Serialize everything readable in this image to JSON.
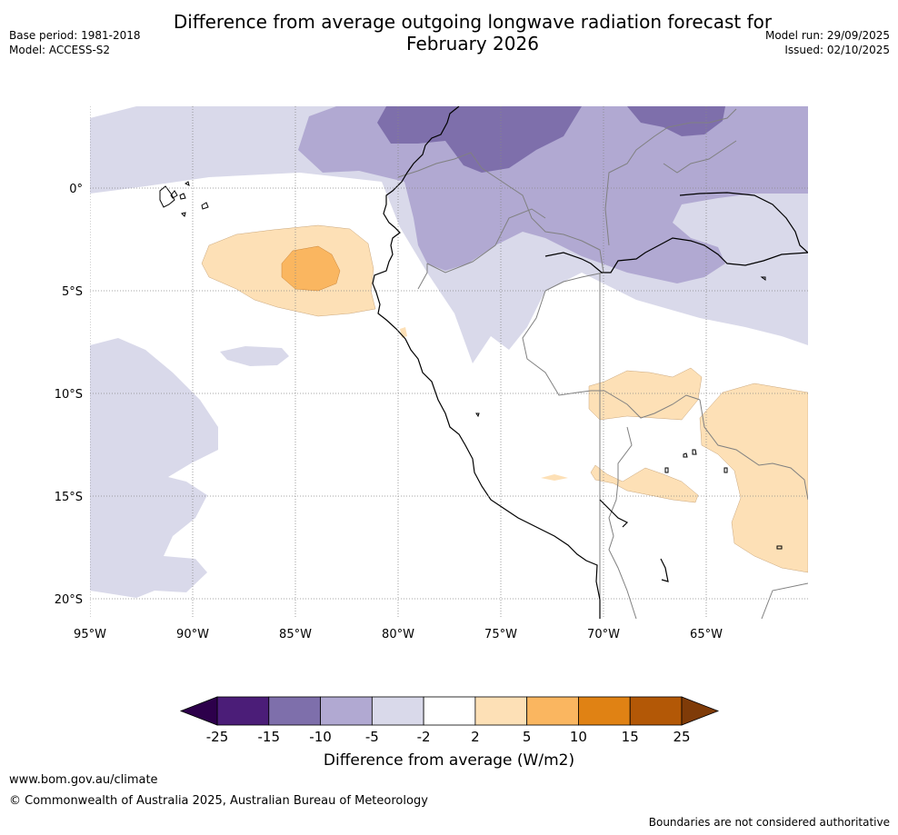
{
  "title_line1": "Difference from average outgoing longwave radiation forecast for",
  "title_line2": "February 2026",
  "base_period": "Base period: 1981-2018",
  "model": "Model: ACCESS-S2",
  "model_run": "Model run: 29/09/2025",
  "issued": "Issued: 02/10/2025",
  "map": {
    "lat_labels": [
      "0°",
      "5°S",
      "10°S",
      "15°S",
      "20°S"
    ],
    "lat_values": [
      0,
      -5,
      -10,
      -15,
      -20
    ],
    "lon_labels": [
      "95°W",
      "90°W",
      "85°W",
      "80°W",
      "75°W",
      "70°W",
      "65°W"
    ],
    "lon_values": [
      -95,
      -90,
      -85,
      -80,
      -75,
      -70,
      -65
    ]
  },
  "colorbar": {
    "ticks": [
      "-25",
      "-15",
      "-10",
      "-5",
      "-2",
      "2",
      "5",
      "10",
      "15",
      "25"
    ],
    "colors": [
      "#4b1d78",
      "#7e6fab",
      "#b1a9d2",
      "#d9d9ea",
      "#ffffff",
      "#fde0b6",
      "#fab660",
      "#e08214",
      "#b35806"
    ],
    "under_color": "#2d004b",
    "over_color": "#7f3b08",
    "label": "Difference from average (W/m2)"
  },
  "footer": {
    "url": "www.bom.gov.au/climate",
    "copyright": "© Commonwealth of Australia 2025, Australian Bureau of Meteorology",
    "disclaimer": "Boundaries are not considered authoritative"
  }
}
